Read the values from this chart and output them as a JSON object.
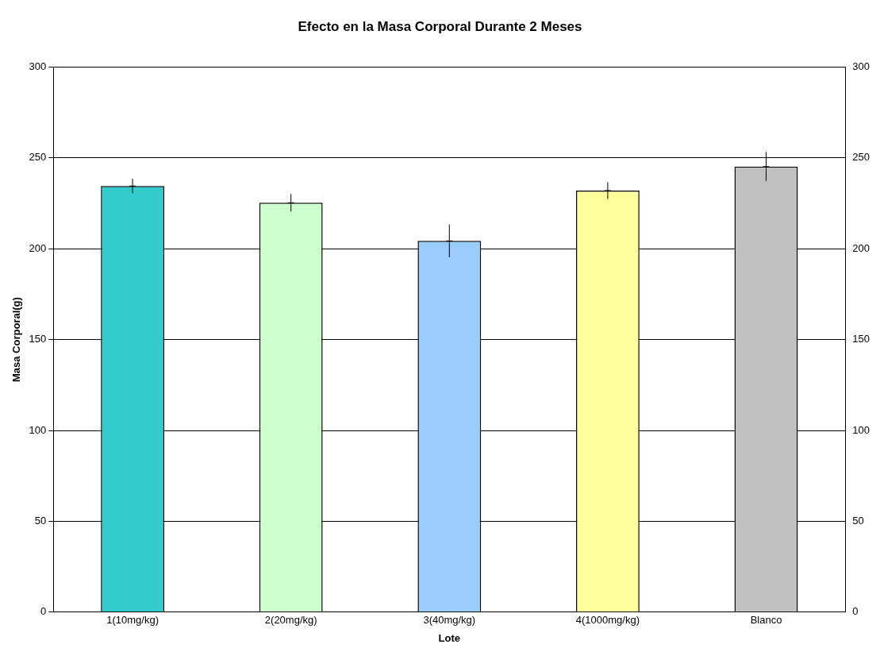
{
  "chart_data": {
    "type": "bar",
    "title": "Efecto en la Masa Corporal Durante 2 Meses",
    "xlabel": "Lote",
    "ylabel": "Masa Corporal(g)",
    "categories": [
      "1(10mg/kg)",
      "2(20mg/kg)",
      "3(40mg/kg)",
      "4(1000mg/kg)",
      "Blanco"
    ],
    "values": [
      234.5,
      225.3,
      204.3,
      232,
      245.2
    ],
    "colors": [
      "#33cccc",
      "#ccffcc",
      "#99ccff",
      "#ffff99",
      "#c0c0c0"
    ],
    "errors": [
      4,
      4.8,
      9,
      4.6,
      8
    ],
    "ylim": [
      0,
      300
    ],
    "yticks": [
      0,
      50,
      100,
      150,
      200,
      250,
      300
    ],
    "y2lim": [
      0,
      300
    ],
    "y2ticks": [
      0,
      50,
      100,
      150,
      200,
      250,
      300
    ],
    "grid": "y",
    "legend": false
  }
}
